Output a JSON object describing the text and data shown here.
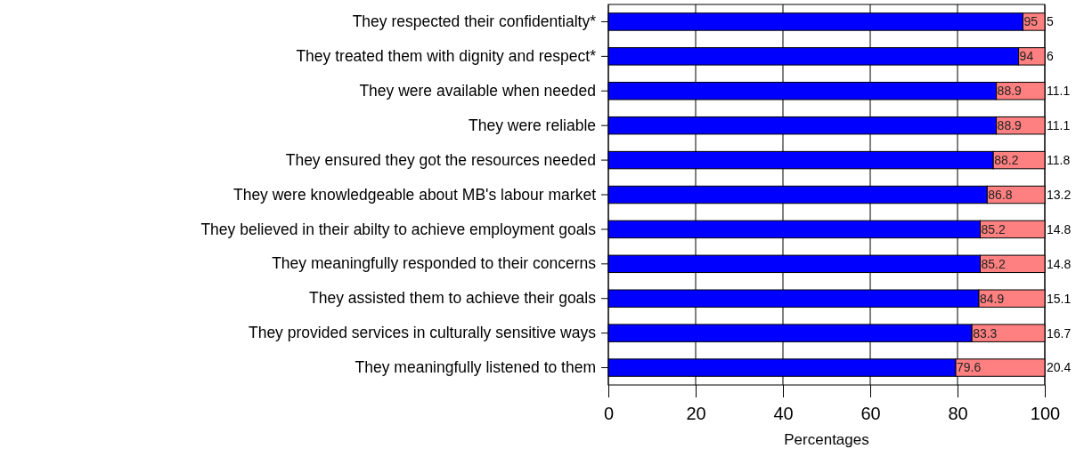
{
  "chart_data": {
    "type": "bar",
    "orientation": "horizontal",
    "stacked": true,
    "data_labels": true,
    "xlabel": "Percentages",
    "categories": [
      "They respected their confidentialty*",
      "They treated them with dignity and respect*",
      "They were available when needed",
      "They were reliable",
      "They ensured they got the resources needed",
      "They were knowledgeable about MB's labour market",
      "They believed in their abilty to achieve employment goals",
      "They meaningfully responded to their concerns",
      "They assisted them to achieve their goals",
      "They provided services in culturally sensitive ways ",
      "They meaningfully listened to them"
    ],
    "series": [
      {
        "color": "#0000ff",
        "values": [
          95,
          94,
          88.9,
          88.9,
          88.2,
          86.8,
          85.2,
          85.2,
          84.9,
          83.3,
          79.6
        ]
      },
      {
        "color": "#ff8080",
        "values": [
          5,
          6,
          11.1,
          11.1,
          11.8,
          13.2,
          14.8,
          14.8,
          15.1,
          16.7,
          20.4
        ]
      }
    ],
    "xlim": [
      0,
      100
    ],
    "xticks": [
      0,
      20,
      40,
      60,
      80,
      100
    ],
    "grid": "x"
  }
}
